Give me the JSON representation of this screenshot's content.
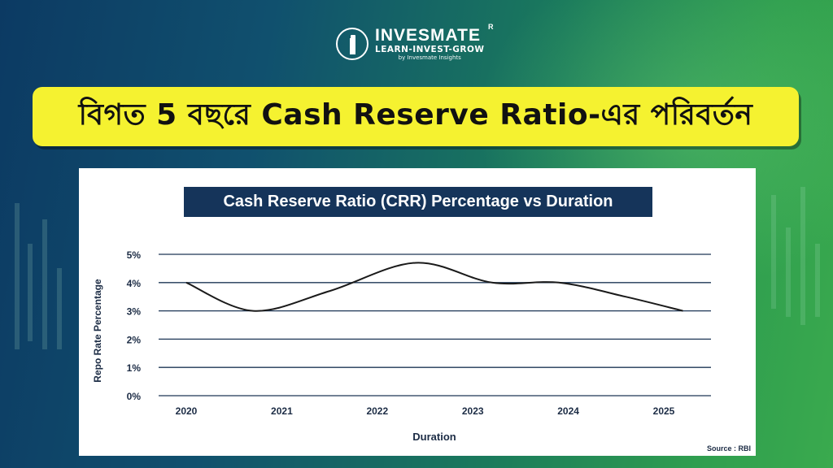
{
  "brand": {
    "name": "INVESMATE",
    "registered_mark": "R",
    "tagline": "LEARN-INVEST-GROW",
    "byline": "by Invesmate Insights"
  },
  "banner": {
    "text": "বিগত 5 বছরে Cash Reserve Ratio-এর পরিবর্তন"
  },
  "colors": {
    "banner_bg": "#f5f230",
    "title_bg": "#15345a",
    "line": "#1a1a1a",
    "grid": "#1d3655"
  },
  "chart_data": {
    "type": "line",
    "title": "Cash Reserve Ratio (CRR) Percentage vs Duration",
    "xlabel": "Duration",
    "ylabel": "Repo Rate Percentage",
    "categories": [
      "2020",
      "2021",
      "2022",
      "2023",
      "2024",
      "2025"
    ],
    "ylim": [
      0,
      5
    ],
    "yticks": [
      "0%",
      "1%",
      "2%",
      "3%",
      "4%",
      "5%"
    ],
    "grid": true,
    "series": [
      {
        "x": [
          2020.0,
          2020.7,
          2021.5,
          2022.4,
          2023.2,
          2023.9,
          2024.6,
          2025.2
        ],
        "values": [
          4.0,
          3.0,
          3.7,
          4.7,
          4.0,
          4.0,
          3.5,
          3.0
        ]
      }
    ],
    "source": "Source : RBI"
  }
}
